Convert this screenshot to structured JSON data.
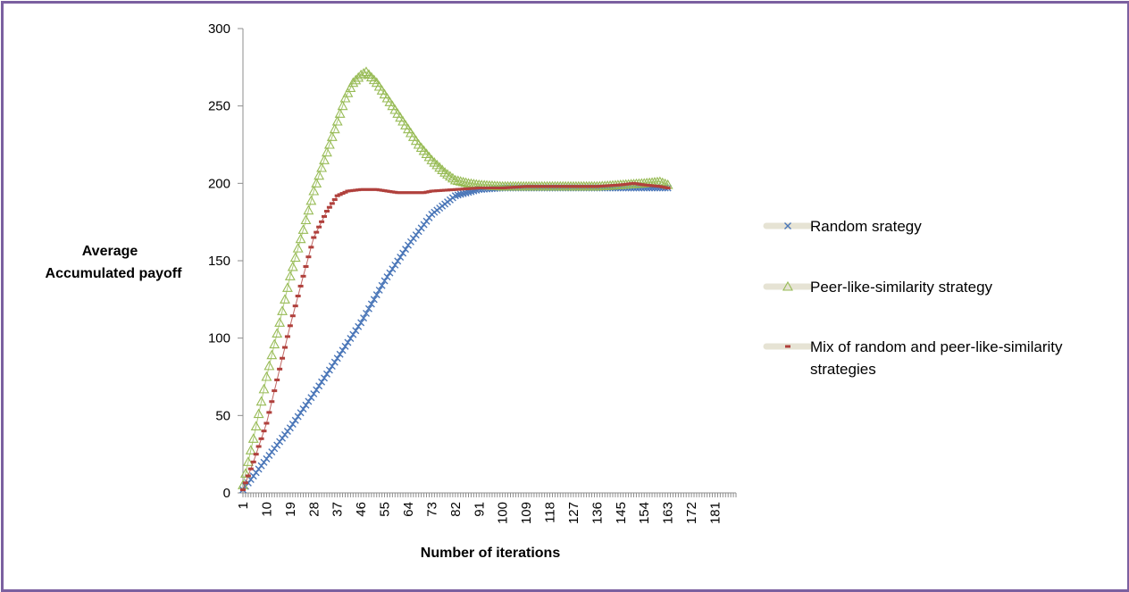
{
  "chart_data": {
    "type": "line",
    "title": "",
    "xlabel": "Number of iterations",
    "ylabel_lines": [
      "Average",
      "Accumulated payoff"
    ],
    "ylim": [
      0,
      300
    ],
    "yticks": [
      0,
      50,
      100,
      150,
      200,
      250,
      300
    ],
    "xlim": [
      1,
      189
    ],
    "xticks": [
      1,
      10,
      19,
      28,
      37,
      46,
      55,
      64,
      73,
      82,
      91,
      100,
      109,
      118,
      127,
      136,
      145,
      154,
      163,
      172,
      181
    ],
    "legend_position": "right",
    "series": [
      {
        "name": "Random srategy",
        "marker": "x",
        "color": "#4a76b8",
        "points": [
          [
            1,
            2
          ],
          [
            10,
            22
          ],
          [
            19,
            42
          ],
          [
            28,
            64
          ],
          [
            37,
            87
          ],
          [
            46,
            110
          ],
          [
            55,
            137
          ],
          [
            64,
            160
          ],
          [
            73,
            180
          ],
          [
            82,
            192
          ],
          [
            91,
            196
          ],
          [
            100,
            197
          ],
          [
            109,
            197
          ],
          [
            118,
            197
          ],
          [
            127,
            197
          ],
          [
            136,
            197
          ],
          [
            145,
            197
          ],
          [
            154,
            197
          ],
          [
            163,
            197
          ]
        ]
      },
      {
        "name": "Peer-like-similarity strategy",
        "marker": "triangle",
        "color": "#97bb55",
        "points": [
          [
            1,
            5
          ],
          [
            5,
            35
          ],
          [
            10,
            75
          ],
          [
            15,
            110
          ],
          [
            19,
            140
          ],
          [
            24,
            170
          ],
          [
            28,
            195
          ],
          [
            33,
            220
          ],
          [
            37,
            240
          ],
          [
            40,
            255
          ],
          [
            43,
            265
          ],
          [
            46,
            270
          ],
          [
            48,
            272
          ],
          [
            52,
            265
          ],
          [
            56,
            255
          ],
          [
            60,
            245
          ],
          [
            64,
            235
          ],
          [
            68,
            225
          ],
          [
            73,
            215
          ],
          [
            78,
            207
          ],
          [
            82,
            202
          ],
          [
            87,
            200
          ],
          [
            91,
            199
          ],
          [
            100,
            198
          ],
          [
            109,
            198
          ],
          [
            118,
            198
          ],
          [
            127,
            198
          ],
          [
            136,
            198
          ],
          [
            145,
            199
          ],
          [
            154,
            200
          ],
          [
            160,
            201
          ],
          [
            163,
            199
          ]
        ]
      },
      {
        "name": "Mix of random and peer-like-similarity strategies",
        "marker": "dash",
        "color": "#b0403c",
        "points": [
          [
            1,
            2
          ],
          [
            5,
            20
          ],
          [
            10,
            45
          ],
          [
            15,
            80
          ],
          [
            19,
            108
          ],
          [
            24,
            140
          ],
          [
            28,
            165
          ],
          [
            33,
            182
          ],
          [
            37,
            192
          ],
          [
            41,
            195
          ],
          [
            46,
            196
          ],
          [
            52,
            196
          ],
          [
            56,
            195
          ],
          [
            60,
            194
          ],
          [
            64,
            194
          ],
          [
            70,
            194
          ],
          [
            73,
            195
          ],
          [
            82,
            196
          ],
          [
            91,
            197
          ],
          [
            100,
            197
          ],
          [
            109,
            198
          ],
          [
            118,
            198
          ],
          [
            127,
            198
          ],
          [
            136,
            198
          ],
          [
            145,
            199
          ],
          [
            150,
            200
          ],
          [
            154,
            199
          ],
          [
            160,
            198
          ],
          [
            163,
            197
          ]
        ]
      }
    ]
  }
}
